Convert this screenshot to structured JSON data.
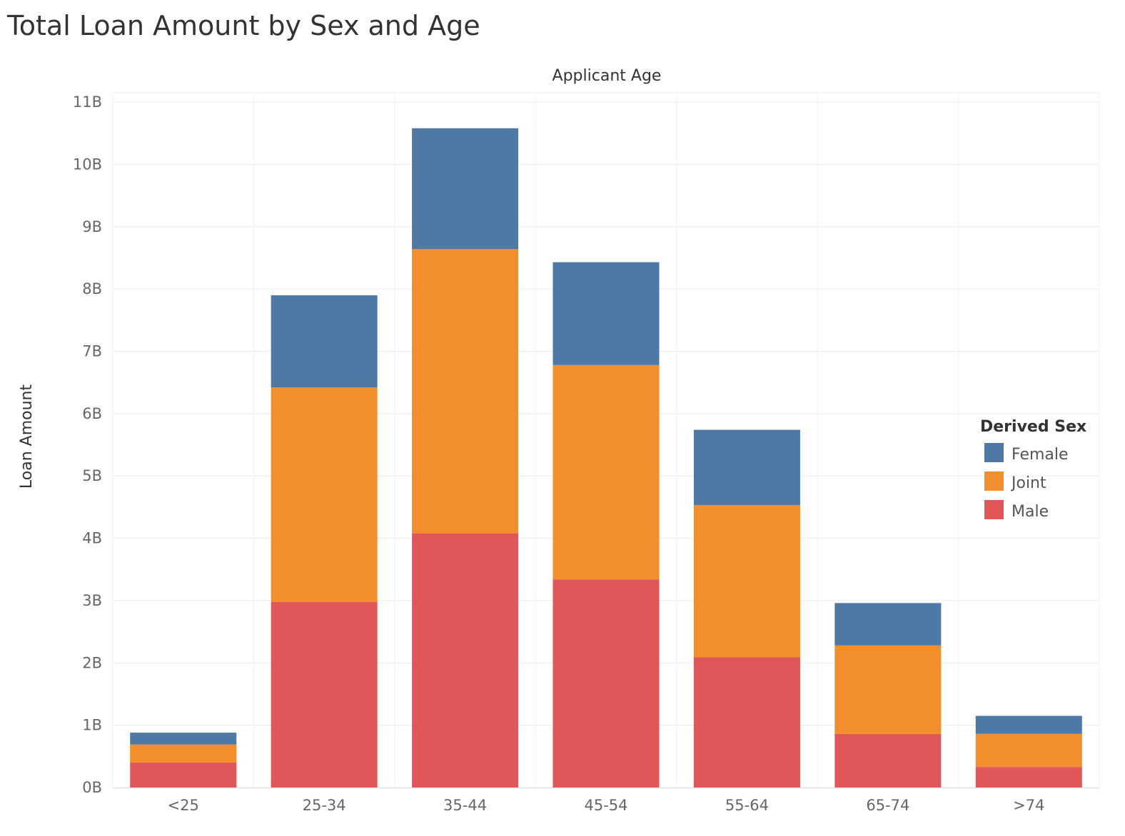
{
  "chart_data": {
    "type": "bar",
    "stacked": true,
    "title": "Total Loan Amount by Sex and Age",
    "xlabel": "Applicant Age",
    "ylabel": "Loan Amount",
    "categories": [
      "<25",
      "25-34",
      "35-44",
      "45-54",
      "55-64",
      "65-74",
      ">74"
    ],
    "y_ticks": [
      "0B",
      "1B",
      "2B",
      "3B",
      "4B",
      "5B",
      "6B",
      "7B",
      "8B",
      "9B",
      "10B",
      "11B"
    ],
    "ylim": [
      0,
      11.15
    ],
    "unit": "B",
    "grid": true,
    "legend": {
      "title": "Derived Sex",
      "position": "right"
    },
    "series": [
      {
        "name": "Male",
        "color": "#e15759",
        "values": [
          0.4,
          2.98,
          4.08,
          3.34,
          2.09,
          0.86,
          0.33
        ]
      },
      {
        "name": "Joint",
        "color": "#f28e2b",
        "values": [
          0.29,
          3.44,
          4.56,
          3.44,
          2.44,
          1.42,
          0.53
        ]
      },
      {
        "name": "Female",
        "color": "#4e79a7",
        "values": [
          0.19,
          1.48,
          1.94,
          1.65,
          1.21,
          0.68,
          0.29
        ]
      }
    ],
    "legend_order": [
      "Female",
      "Joint",
      "Male"
    ]
  }
}
